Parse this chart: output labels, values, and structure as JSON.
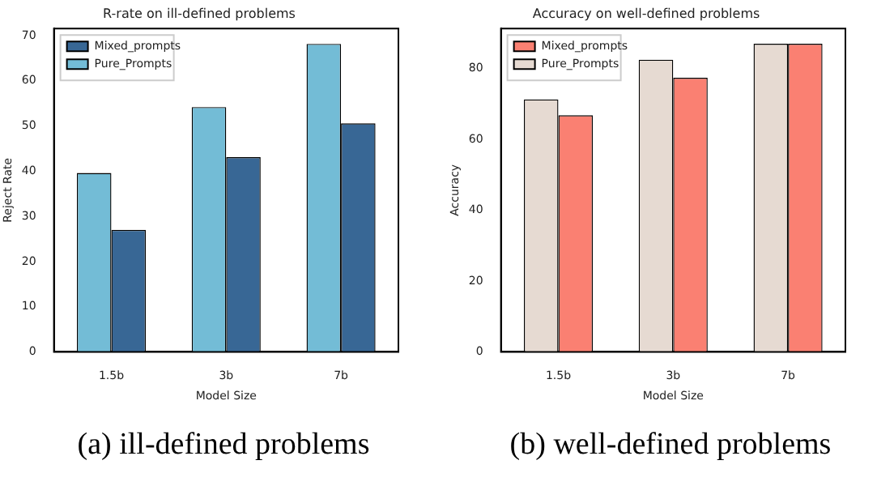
{
  "chart_data": [
    {
      "type": "bar",
      "title": "R-rate on ill-defined problems",
      "xlabel": "Model Size",
      "ylabel": "Reject Rate",
      "categories": [
        "1.5b",
        "3b",
        "7b"
      ],
      "series": [
        {
          "name": "Pure_Prompts",
          "color": "#73bcd6",
          "values": [
            39.6,
            54.2,
            68.2
          ]
        },
        {
          "name": "Mixed_prompts",
          "color": "#386795",
          "values": [
            27.0,
            43.1,
            50.6
          ]
        }
      ],
      "ylim": [
        0,
        71.6
      ],
      "yticks": [
        0,
        10,
        20,
        30,
        40,
        50,
        60,
        70
      ],
      "legend": "top left",
      "annotations": [
        "(a)  ill-defined problems"
      ]
    },
    {
      "type": "bar",
      "title": "Accuracy on well-defined problems",
      "xlabel": "Model Size",
      "ylabel": "Accuracy",
      "categories": [
        "1.5b",
        "3b",
        "7b"
      ],
      "series": [
        {
          "name": "Pure_Prompts",
          "color": "#e6dad2",
          "values": [
            71.3,
            82.5,
            87.0
          ]
        },
        {
          "name": "Mixed_prompts",
          "color": "#fa8072",
          "values": [
            66.8,
            77.4,
            87.0
          ]
        }
      ],
      "ylim": [
        0,
        91.3
      ],
      "yticks": [
        0,
        20,
        40,
        60,
        80
      ],
      "legend": "top left",
      "annotations": [
        "(b)  well-defined problems"
      ]
    }
  ]
}
